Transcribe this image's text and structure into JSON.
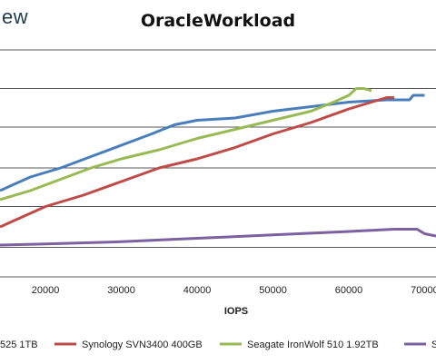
{
  "header": {
    "logo_text": "ew"
  },
  "chart_data": {
    "type": "line",
    "title": "OracleWorkload",
    "xlabel": "IOPS",
    "ylabel": "",
    "xlim": [
      14000,
      71500
    ],
    "ylim": [
      0,
      1
    ],
    "x_ticks": [
      "20000",
      "30000",
      "40000",
      "50000",
      "60000",
      "70000"
    ],
    "x_tick_values": [
      20000,
      30000,
      40000,
      50000,
      60000,
      70000
    ],
    "y_ticks": [
      0.13,
      0.31,
      0.48,
      0.66,
      0.83,
      1.0
    ],
    "grid": true,
    "legend_position": "bottom",
    "series": [
      {
        "name": "525 1TB",
        "color": "#4a7ebb",
        "points": [
          [
            14000,
            0.38
          ],
          [
            18000,
            0.44
          ],
          [
            22000,
            0.48
          ],
          [
            26000,
            0.53
          ],
          [
            30000,
            0.58
          ],
          [
            34000,
            0.63
          ],
          [
            37000,
            0.67
          ],
          [
            40000,
            0.69
          ],
          [
            45000,
            0.7
          ],
          [
            50000,
            0.73
          ],
          [
            55000,
            0.75
          ],
          [
            60000,
            0.77
          ],
          [
            65000,
            0.78
          ],
          [
            68000,
            0.78
          ],
          [
            68500,
            0.8
          ],
          [
            70000,
            0.8
          ]
        ]
      },
      {
        "name": "Synology SVN3400 400GB",
        "color": "#be4b48",
        "points": [
          [
            14000,
            0.22
          ],
          [
            16000,
            0.25
          ],
          [
            20000,
            0.31
          ],
          [
            25000,
            0.36
          ],
          [
            30000,
            0.42
          ],
          [
            35000,
            0.48
          ],
          [
            40000,
            0.52
          ],
          [
            45000,
            0.57
          ],
          [
            50000,
            0.63
          ],
          [
            55000,
            0.68
          ],
          [
            60000,
            0.74
          ],
          [
            63000,
            0.77
          ],
          [
            65000,
            0.79
          ],
          [
            66000,
            0.79
          ]
        ]
      },
      {
        "name": "Seagate IronWolf 510 1.92TB",
        "color": "#98b954",
        "points": [
          [
            14000,
            0.34
          ],
          [
            18000,
            0.38
          ],
          [
            22000,
            0.43
          ],
          [
            26000,
            0.48
          ],
          [
            30000,
            0.52
          ],
          [
            35000,
            0.56
          ],
          [
            40000,
            0.61
          ],
          [
            45000,
            0.65
          ],
          [
            50000,
            0.69
          ],
          [
            55000,
            0.73
          ],
          [
            58000,
            0.77
          ],
          [
            60000,
            0.8
          ],
          [
            61000,
            0.83
          ],
          [
            62000,
            0.83
          ],
          [
            63000,
            0.82
          ]
        ]
      },
      {
        "name": "S",
        "color": "#7d60a0",
        "points": [
          [
            14000,
            0.14
          ],
          [
            20000,
            0.145
          ],
          [
            30000,
            0.155
          ],
          [
            40000,
            0.17
          ],
          [
            50000,
            0.185
          ],
          [
            60000,
            0.2
          ],
          [
            66000,
            0.21
          ],
          [
            69000,
            0.21
          ],
          [
            70000,
            0.19
          ],
          [
            71500,
            0.18
          ]
        ]
      }
    ]
  }
}
